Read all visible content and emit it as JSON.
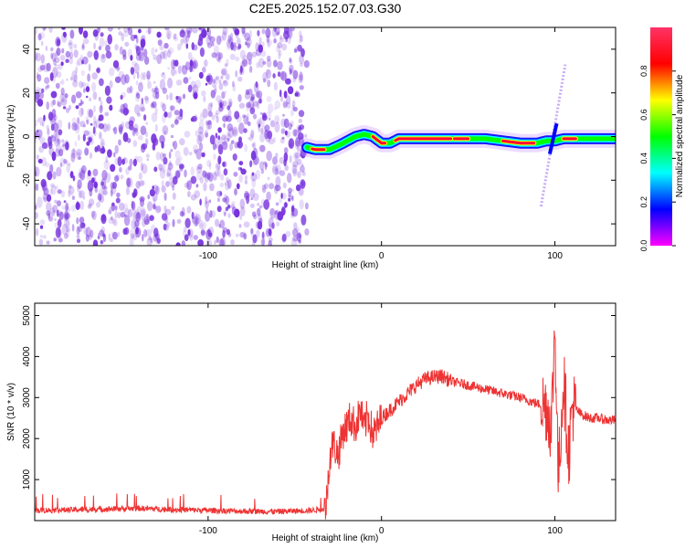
{
  "page": {
    "title": "C2E5.2025.152.07.03.G30"
  },
  "colors": {
    "background": "#ffffff",
    "snr_line": "#ee3333",
    "scatter_point": "#7733dd",
    "axis": "#000000"
  },
  "chart_data": [
    {
      "type": "heatmap",
      "title": "C2E5.2025.152.07.03.G30",
      "xlabel": "Height of straight line (km)",
      "ylabel": "Frequency (Hz)",
      "xlim": [
        -200,
        135
      ],
      "ylim": [
        -50,
        50
      ],
      "x_ticks": [
        -100,
        0,
        100
      ],
      "y_ticks": [
        -40,
        -20,
        0,
        20,
        40
      ],
      "grid": false,
      "noise_region": {
        "x_range": [
          -200,
          -43
        ],
        "y_range": [
          -50,
          50
        ]
      },
      "ridge": {
        "x": [
          -43,
          -38,
          -30,
          -22,
          -15,
          -10,
          -5,
          0,
          5,
          10,
          20,
          30,
          40,
          50,
          60,
          70,
          80,
          90,
          95,
          100,
          105,
          110,
          120,
          135
        ],
        "y": [
          -5,
          -6,
          -6,
          -3,
          0,
          1,
          0,
          -3,
          -3,
          -1,
          -1,
          -1,
          -1,
          -1,
          -1,
          -2,
          -3,
          -3,
          -2,
          -2,
          -1,
          -1,
          -1,
          -1
        ]
      },
      "spike": {
        "x_range": [
          92,
          106
        ],
        "y_range": [
          -32,
          33
        ]
      },
      "colorbar": {
        "label": "Normalized spectral amplitude",
        "range": [
          0,
          1
        ],
        "ticks": [
          "0.0",
          "0.2",
          "0.4",
          "0.6",
          "0.8"
        ],
        "colormap": [
          "#ff00ff",
          "#0000ff",
          "#00ffff",
          "#00ff00",
          "#ffff00",
          "#ff0000",
          "#ff3366"
        ]
      }
    },
    {
      "type": "line",
      "xlabel": "Height of straight line (km)",
      "ylabel": "SNR (10 * v/v)",
      "xlim": [
        -200,
        135
      ],
      "ylim": [
        0,
        5300
      ],
      "x_ticks": [
        -100,
        0,
        100
      ],
      "y_ticks": [
        1000,
        2000,
        3000,
        4000,
        5000
      ],
      "grid": false,
      "series": [
        {
          "x": [
            -200,
            -180,
            -160,
            -140,
            -120,
            -100,
            -80,
            -60,
            -40,
            -32,
            -30,
            -28,
            -25,
            -22,
            -20,
            -18,
            -15,
            -12,
            -10,
            -8,
            -5,
            -2,
            0,
            5,
            10,
            15,
            20,
            25,
            30,
            35,
            40,
            50,
            60,
            70,
            80,
            90,
            95,
            98,
            100,
            102,
            105,
            108,
            110,
            115,
            120,
            125,
            130,
            135
          ],
          "y": [
            250,
            260,
            280,
            300,
            270,
            250,
            230,
            220,
            250,
            300,
            1500,
            1900,
            1600,
            2200,
            2300,
            2500,
            2300,
            2700,
            2200,
            2600,
            2100,
            2300,
            2500,
            2700,
            2900,
            3100,
            3300,
            3450,
            3500,
            3520,
            3400,
            3300,
            3200,
            3100,
            3000,
            2850,
            2800,
            2300,
            4800,
            1000,
            3500,
            1600,
            2800,
            2600,
            2500,
            2500,
            2450,
            2450
          ]
        }
      ]
    }
  ]
}
